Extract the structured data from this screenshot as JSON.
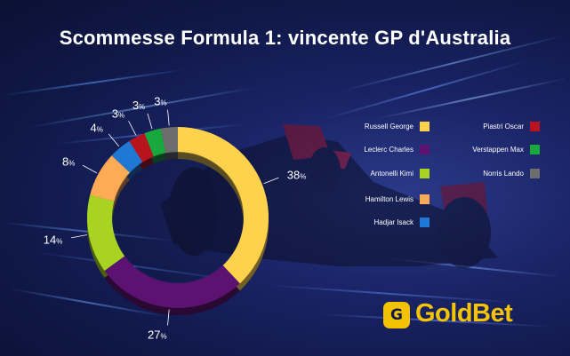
{
  "title": "Scommesse Formula 1: vincente GP d'Australia",
  "brand": {
    "logo_mark": "G",
    "logo_text": "GoldBet",
    "logo_color": "#f5c400",
    "background_color": "#141c52"
  },
  "chart_data": {
    "type": "pie",
    "donut": true,
    "title": "Scommesse Formula 1: vincente GP d'Australia",
    "legend_position": "right",
    "label_suffix": "%",
    "series": [
      {
        "name": "Russell George",
        "value": 38,
        "color": "#ffd24d"
      },
      {
        "name": "Leclerc Charles",
        "value": 27,
        "color": "#5b1270"
      },
      {
        "name": "Antonelli Kimi",
        "value": 14,
        "color": "#a8d321"
      },
      {
        "name": "Hamilton Lewis",
        "value": 8,
        "color": "#ffaa55"
      },
      {
        "name": "Hadjar Isack",
        "value": 4,
        "color": "#1f78d4"
      },
      {
        "name": "Piastri Oscar",
        "value": 3,
        "color": "#b81420"
      },
      {
        "name": "Verstappen Max",
        "value": 3,
        "color": "#18a83c"
      },
      {
        "name": "Norris Lando",
        "value": 3,
        "color": "#6d6d6d"
      }
    ]
  }
}
